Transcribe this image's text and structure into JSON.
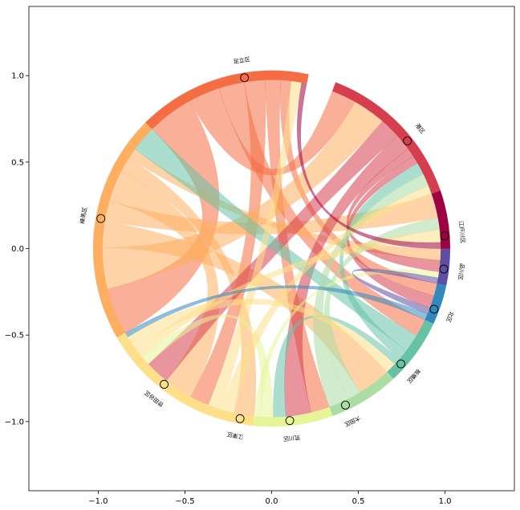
{
  "chart_data": {
    "type": "chord",
    "title": "",
    "xlabel": "",
    "ylabel": "",
    "xlim": [
      -1.4,
      1.4
    ],
    "ylim": [
      -1.4,
      1.4
    ],
    "x_ticks": [
      {
        "value": -1.0,
        "label": "−1.0"
      },
      {
        "value": -0.5,
        "label": "−0.5"
      },
      {
        "value": 0.0,
        "label": "0.0"
      },
      {
        "value": 0.5,
        "label": "0.5"
      },
      {
        "value": 1.0,
        "label": "1.0"
      }
    ],
    "y_ticks": [
      {
        "value": 1.0,
        "label": "1.0"
      },
      {
        "value": 0.5,
        "label": "0.5"
      },
      {
        "value": 0.0,
        "label": "0.0"
      },
      {
        "value": -0.5,
        "label": "−0.5"
      },
      {
        "value": -1.0,
        "label": "−1.0"
      }
    ],
    "nodes": [
      {
        "label": "港区",
        "start": 69,
        "end": 19,
        "color": "#d53e4f"
      },
      {
        "label": "江戸川区",
        "start": 19,
        "end": 0,
        "color": "#9e0142"
      },
      {
        "label": "品川区",
        "start": 0,
        "end": -12,
        "color": "#5e4fa2"
      },
      {
        "label": "北区",
        "start": -12,
        "end": -25,
        "color": "#3288bd"
      },
      {
        "label": "板橋区",
        "start": -25,
        "end": -47,
        "color": "#66c2a5"
      },
      {
        "label": "大田区",
        "start": -47,
        "end": -70,
        "color": "#abdda4"
      },
      {
        "label": "荒川区",
        "start": -70,
        "end": -96,
        "color": "#e6f598"
      },
      {
        "label": "江東区",
        "start": -96,
        "end": -112,
        "color": "#fee08b"
      },
      {
        "label": "世田谷区",
        "start": -112,
        "end": -150,
        "color": "#fee08b"
      },
      {
        "label": "練馬区",
        "start": -150,
        "end": -225,
        "color": "#fdae61"
      },
      {
        "label": "足立区",
        "start": -225,
        "end": -282,
        "color": "#f46d43"
      }
    ],
    "markers": [
      {
        "node": 0,
        "angle": 38.5,
        "label_angle": 39
      },
      {
        "node": 1,
        "angle": 4.2,
        "label_angle": 5
      },
      {
        "node": 2,
        "angle": -6.8,
        "label_angle": -7
      },
      {
        "node": 3,
        "angle": -20.5,
        "label_angle": -21
      },
      {
        "node": 4,
        "angle": -41.8,
        "label_angle": -42
      },
      {
        "node": 5,
        "angle": -64.8,
        "label_angle": -65
      },
      {
        "node": 6,
        "angle": -84.0,
        "label_angle": -84
      },
      {
        "node": 7,
        "angle": -100.5,
        "label_angle": -101
      },
      {
        "node": 8,
        "angle": -128.3,
        "label_angle": -128
      },
      {
        "node": 9,
        "angle": -190.0,
        "label_angle": -190
      },
      {
        "node": 10,
        "angle": -261.0,
        "label_angle": -261
      }
    ],
    "chords": [
      {
        "from": 10,
        "to": 9,
        "weight": 9
      },
      {
        "from": 10,
        "to": 0,
        "weight": 6
      },
      {
        "from": 10,
        "to": 4,
        "weight": 5
      },
      {
        "from": 10,
        "to": 8,
        "weight": 4
      },
      {
        "from": 10,
        "to": 6,
        "weight": 3
      },
      {
        "from": 10,
        "to": 3,
        "weight": 2
      },
      {
        "from": 9,
        "to": 0,
        "weight": 8
      },
      {
        "from": 9,
        "to": 5,
        "weight": 5
      },
      {
        "from": 9,
        "to": 1,
        "weight": 4
      },
      {
        "from": 9,
        "to": 8,
        "weight": 6
      },
      {
        "from": 9,
        "to": 7,
        "weight": 3
      },
      {
        "from": 9,
        "to": 2,
        "weight": 2
      },
      {
        "from": 0,
        "to": 8,
        "weight": 5
      },
      {
        "from": 0,
        "to": 6,
        "weight": 4
      },
      {
        "from": 0,
        "to": 2,
        "weight": 2
      },
      {
        "from": 0,
        "to": 3,
        "weight": 2
      },
      {
        "from": 4,
        "to": 9,
        "weight": 5
      },
      {
        "from": 4,
        "to": 0,
        "weight": 3
      },
      {
        "from": 4,
        "to": 6,
        "weight": 2
      },
      {
        "from": 5,
        "to": 1,
        "weight": 2
      },
      {
        "from": 5,
        "to": 0,
        "weight": 3
      },
      {
        "from": 6,
        "to": 8,
        "weight": 2
      },
      {
        "from": 6,
        "to": 2,
        "weight": 1
      },
      {
        "from": 7,
        "to": 0,
        "weight": 2
      },
      {
        "from": 7,
        "to": 10,
        "weight": 2
      },
      {
        "from": 8,
        "to": 1,
        "weight": 2
      },
      {
        "from": 8,
        "to": 4,
        "weight": 3
      },
      {
        "from": 2,
        "to": 3,
        "weight": 1
      },
      {
        "from": 3,
        "to": 8,
        "weight": 1
      },
      {
        "from": 1,
        "to": 10,
        "weight": 1
      }
    ]
  }
}
